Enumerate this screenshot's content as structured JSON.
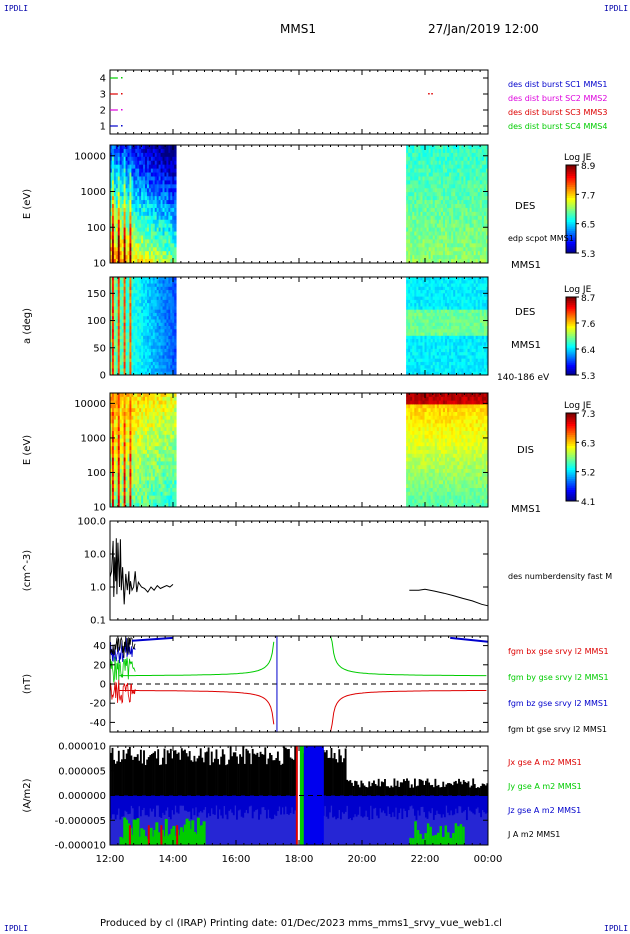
{
  "corners": {
    "top_left": "IPDLI",
    "top_right": "IPDLI",
    "bottom_left": "IPDLI",
    "bottom_right": "IPDLI"
  },
  "header": {
    "spacecraft": "MMS1",
    "datetime": "27/Jan/2019 12:00"
  },
  "footer": {
    "text": "Produced by cl (IRAP)   Printing date: 01/Dec/2023   mms_mms1_srvy_vue_web1.cl"
  },
  "colors": {
    "red": "#dd0000",
    "green": "#00cc00",
    "blue": "#0000cc",
    "magenta": "#dd00dd",
    "black": "#000000"
  },
  "chart_data": [
    {
      "type": "scatter",
      "panel": "burst flags",
      "ylim": [
        0.5,
        4.5
      ],
      "yticks": [
        "1",
        "2",
        "3",
        "4"
      ],
      "series": [
        {
          "name": "des dist burst SC1 MMS1",
          "level": 1,
          "color": "#0000cc",
          "intervals": [
            [
              12.0,
              12.25
            ]
          ],
          "dots": [
            12.35
          ]
        },
        {
          "name": "des dist burst SC2 MMS2",
          "level": 2,
          "color": "#dd00dd",
          "intervals": [
            [
              12.0,
              12.25
            ]
          ],
          "dots": [
            12.35
          ]
        },
        {
          "name": "des dist burst SC3 MMS3",
          "level": 3,
          "color": "#dd0000",
          "intervals": [
            [
              12.0,
              12.25
            ]
          ],
          "dots": [
            12.35,
            22.1,
            22.2
          ]
        },
        {
          "name": "des dist burst SC4 MMS4",
          "level": 4,
          "color": "#00cc00",
          "intervals": [
            [
              12.0,
              12.25
            ]
          ],
          "dots": [
            12.35
          ]
        }
      ]
    },
    {
      "type": "heatmap",
      "panel": "DES energy spectrogram",
      "ylabel": "E (eV)",
      "yscale": "log",
      "ylim": [
        10,
        20000
      ],
      "yticks": [
        "10",
        "100",
        "1000",
        "10000"
      ],
      "label": "DES",
      "colorbar": {
        "title": "Log JE",
        "ticks": [
          "8.9",
          "7.7",
          "6.5",
          "5.3"
        ]
      },
      "coverage_hours": [
        [
          12.0,
          14.1
        ],
        [
          21.4,
          24.0
        ]
      ],
      "side_labels": [
        "edp scpot MMS1",
        "MMS1"
      ]
    },
    {
      "type": "heatmap",
      "panel": "DES pitch angle",
      "ylabel": "a (deg)",
      "ylim": [
        0,
        180
      ],
      "yticks": [
        "0",
        "50",
        "100",
        "150"
      ],
      "label": "DES",
      "colorbar": {
        "title": "Log JE",
        "ticks": [
          "8.7",
          "7.6",
          "6.4",
          "5.3"
        ]
      },
      "coverage_hours": [
        [
          12.0,
          14.1
        ],
        [
          21.4,
          24.0
        ]
      ],
      "side_labels": [
        "MMS1",
        "140-186 eV"
      ]
    },
    {
      "type": "heatmap",
      "panel": "DIS energy spectrogram",
      "ylabel": "E (eV)",
      "yscale": "log",
      "ylim": [
        10,
        20000
      ],
      "yticks": [
        "10",
        "100",
        "1000",
        "10000"
      ],
      "label": "DIS",
      "colorbar": {
        "title": "Log JE",
        "ticks": [
          "7.3",
          "6.3",
          "5.2",
          "4.1"
        ]
      },
      "coverage_hours": [
        [
          12.0,
          14.1
        ],
        [
          21.4,
          24.0
        ]
      ],
      "side_labels": [
        "MMS1"
      ]
    },
    {
      "type": "line",
      "panel": "density",
      "ylabel": "(cm^-3)",
      "yscale": "log",
      "ylim": [
        0.1,
        100
      ],
      "yticks": [
        "0.1",
        "1.0",
        "10.0",
        "100.0"
      ],
      "series": [
        {
          "name": "des numberdensity fast M",
          "color": "#000000",
          "x": [
            12.0,
            12.05,
            12.1,
            12.12,
            12.15,
            12.18,
            12.2,
            12.22,
            12.25,
            12.3,
            12.33,
            12.36,
            12.4,
            12.45,
            12.5,
            12.55,
            12.6,
            12.62,
            12.65,
            12.7,
            12.75,
            12.8,
            12.85,
            12.9,
            13.0,
            13.1,
            13.2,
            13.3,
            13.4,
            13.5,
            13.6,
            13.7,
            13.8,
            13.9,
            14.0,
            21.5,
            21.8,
            22.0,
            22.3,
            22.6,
            22.9,
            23.2,
            23.5,
            23.8,
            24.0
          ],
          "y": [
            2.0,
            3.0,
            25,
            0.5,
            8,
            1.5,
            30,
            0.6,
            22,
            1.0,
            28,
            0.8,
            4,
            0.3,
            2.5,
            0.8,
            3,
            0.6,
            1.5,
            0.8,
            1.0,
            3,
            0.7,
            1.4,
            1.0,
            0.9,
            0.7,
            1.0,
            0.8,
            1.1,
            0.9,
            1.0,
            1.1,
            1.0,
            1.2,
            0.8,
            0.8,
            0.85,
            0.75,
            0.65,
            0.55,
            0.45,
            0.38,
            0.3,
            0.27
          ]
        }
      ]
    },
    {
      "type": "line",
      "panel": "magnetic field",
      "ylabel": "(nT)",
      "ylim": [
        -50,
        50
      ],
      "yticks": [
        "-40",
        "-20",
        "0",
        "20",
        "40"
      ],
      "series": [
        {
          "name": "fgm bx gse srvy l2 MMS1",
          "color": "#dd0000"
        },
        {
          "name": "fgm by gse srvy l2 MMS1",
          "color": "#00cc00"
        },
        {
          "name": "fgm bz gse srvy l2 MMS1",
          "color": "#0000cc"
        },
        {
          "name": "fgm bt gse srvy l2 MMS1",
          "color": "#000000"
        }
      ]
    },
    {
      "type": "line",
      "panel": "current density",
      "ylabel": "(A/m2)",
      "ylim": [
        -1e-05,
        1e-05
      ],
      "yticks": [
        "-0.000010",
        "-0.000005",
        "0.000000",
        "0.000005",
        "0.000010"
      ],
      "series": [
        {
          "name": "Jx gse A m2 MMS1",
          "color": "#dd0000"
        },
        {
          "name": "Jy gse A m2 MMS1",
          "color": "#00cc00"
        },
        {
          "name": "Jz gse A m2 MMS1",
          "color": "#0000cc"
        },
        {
          "name": "J A m2 MMS1",
          "color": "#000000"
        }
      ]
    }
  ],
  "xaxis": {
    "ticks": [
      "12:00",
      "14:00",
      "16:00",
      "18:00",
      "20:00",
      "22:00",
      "00:00"
    ],
    "range_hours": [
      12,
      24
    ]
  }
}
